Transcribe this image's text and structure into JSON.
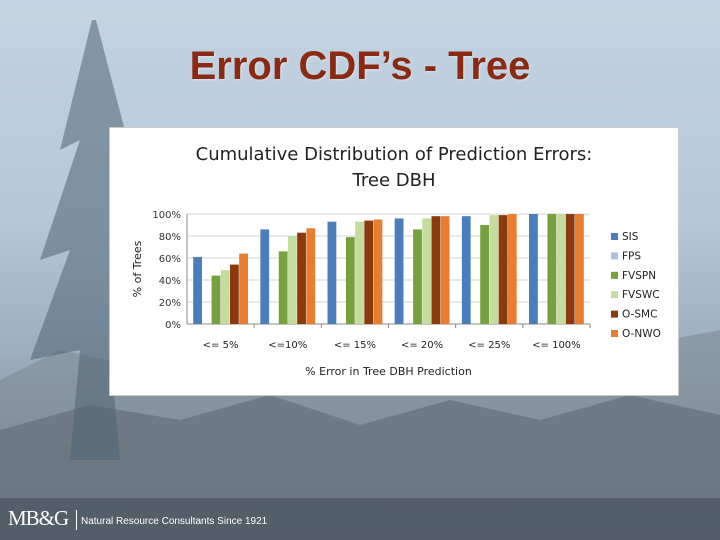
{
  "slide": {
    "title": "Error CDF’s - Tree",
    "footer_logo": "MB&G",
    "footer_tagline": "Natural Resource Consultants Since 1921"
  },
  "chart_data": {
    "type": "bar",
    "title": "Cumulative Distribution of Prediction Errors: Tree DBH",
    "title_lines": [
      "Cumulative Distribution of Prediction Errors:",
      "Tree DBH"
    ],
    "xlabel": "% Error in Tree DBH Prediction",
    "ylabel": "% of Trees",
    "ylim": [
      0,
      100
    ],
    "y_ticks": [
      "0%",
      "20%",
      "40%",
      "60%",
      "80%",
      "100%"
    ],
    "y_tick_values": [
      0,
      20,
      40,
      60,
      80,
      100
    ],
    "grid": "horizontal",
    "legend_position": "right",
    "categories": [
      "<= 5%",
      "<=10%",
      "<= 15%",
      "<= 20%",
      "<= 25%",
      "<= 100%"
    ],
    "series": [
      {
        "name": "SIS",
        "color": "#4a7ebb",
        "values": [
          61,
          86,
          93,
          96,
          98,
          100
        ]
      },
      {
        "name": "FPS",
        "color": "#a9c2e0",
        "values": [
          0,
          0,
          0,
          0,
          0,
          0
        ]
      },
      {
        "name": "FVSPN",
        "color": "#77a13f",
        "values": [
          44,
          66,
          79,
          86,
          90,
          100
        ]
      },
      {
        "name": "FVSWC",
        "color": "#c4dd9f",
        "values": [
          49,
          80,
          93,
          96,
          99,
          100
        ]
      },
      {
        "name": "O-SMC",
        "color": "#8b3a0e",
        "values": [
          54,
          83,
          94,
          98,
          99,
          100
        ]
      },
      {
        "name": "O-NWO",
        "color": "#e87d2f",
        "values": [
          64,
          87,
          95,
          98,
          100,
          100
        ]
      }
    ]
  }
}
